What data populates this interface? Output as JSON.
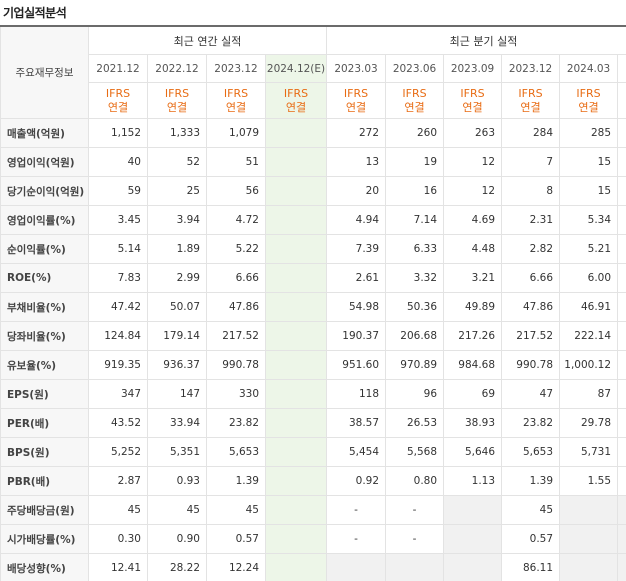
{
  "title": "기업실적분석",
  "header": {
    "main_info": "주요재무정보",
    "annual_label": "최근 연간 실적",
    "quarter_label": "최근 분기 실적",
    "annual_periods": [
      "2021.12",
      "2022.12",
      "2023.12",
      "2024.12(E)"
    ],
    "quarter_periods": [
      "2023.03",
      "2023.06",
      "2023.09",
      "2023.12",
      "2024.03"
    ],
    "ifrs_line1": "IFRS",
    "ifrs_line2": "연결"
  },
  "rows": [
    {
      "label": "매출액(억원)",
      "annual": [
        "1,152",
        "1,333",
        "1,079",
        ""
      ],
      "quarter": [
        "272",
        "260",
        "263",
        "284",
        "285"
      ]
    },
    {
      "label": "영업이익(억원)",
      "annual": [
        "40",
        "52",
        "51",
        ""
      ],
      "quarter": [
        "13",
        "19",
        "12",
        "7",
        "15"
      ]
    },
    {
      "label": "당기순이익(억원)",
      "annual": [
        "59",
        "25",
        "56",
        ""
      ],
      "quarter": [
        "20",
        "16",
        "12",
        "8",
        "15"
      ]
    },
    {
      "label": "영업이익률(%)",
      "annual": [
        "3.45",
        "3.94",
        "4.72",
        ""
      ],
      "quarter": [
        "4.94",
        "7.14",
        "4.69",
        "2.31",
        "5.34"
      ]
    },
    {
      "label": "순이익률(%)",
      "annual": [
        "5.14",
        "1.89",
        "5.22",
        ""
      ],
      "quarter": [
        "7.39",
        "6.33",
        "4.48",
        "2.82",
        "5.21"
      ]
    },
    {
      "label": "ROE(%)",
      "annual": [
        "7.83",
        "2.99",
        "6.66",
        ""
      ],
      "quarter": [
        "2.61",
        "3.32",
        "3.21",
        "6.66",
        "6.00"
      ]
    },
    {
      "label": "부채비율(%)",
      "annual": [
        "47.42",
        "50.07",
        "47.86",
        ""
      ],
      "quarter": [
        "54.98",
        "50.36",
        "49.89",
        "47.86",
        "46.91"
      ]
    },
    {
      "label": "당좌비율(%)",
      "annual": [
        "124.84",
        "179.14",
        "217.52",
        ""
      ],
      "quarter": [
        "190.37",
        "206.68",
        "217.26",
        "217.52",
        "222.14"
      ]
    },
    {
      "label": "유보율(%)",
      "annual": [
        "919.35",
        "936.37",
        "990.78",
        ""
      ],
      "quarter": [
        "951.60",
        "970.89",
        "984.68",
        "990.78",
        "1,000.12"
      ]
    },
    {
      "label": "EPS(원)",
      "annual": [
        "347",
        "147",
        "330",
        ""
      ],
      "quarter": [
        "118",
        "96",
        "69",
        "47",
        "87"
      ]
    },
    {
      "label": "PER(배)",
      "annual": [
        "43.52",
        "33.94",
        "23.82",
        ""
      ],
      "quarter": [
        "38.57",
        "26.53",
        "38.93",
        "23.82",
        "29.78"
      ]
    },
    {
      "label": "BPS(원)",
      "annual": [
        "5,252",
        "5,351",
        "5,653",
        ""
      ],
      "quarter": [
        "5,454",
        "5,568",
        "5,646",
        "5,653",
        "5,731"
      ]
    },
    {
      "label": "PBR(배)",
      "annual": [
        "2.87",
        "0.93",
        "1.39",
        ""
      ],
      "quarter": [
        "0.92",
        "0.80",
        "1.13",
        "1.39",
        "1.55"
      ]
    },
    {
      "label": "주당배당금(원)",
      "annual": [
        "45",
        "45",
        "45",
        ""
      ],
      "quarter": [
        "-",
        "-",
        "",
        "45",
        ""
      ]
    },
    {
      "label": "시가배당률(%)",
      "annual": [
        "0.30",
        "0.90",
        "0.57",
        ""
      ],
      "quarter": [
        "-",
        "-",
        "",
        "0.57",
        ""
      ]
    },
    {
      "label": "배당성향(%)",
      "annual": [
        "12.41",
        "28.22",
        "12.24",
        ""
      ],
      "quarter": [
        "",
        "",
        "",
        "86.11",
        ""
      ]
    }
  ]
}
